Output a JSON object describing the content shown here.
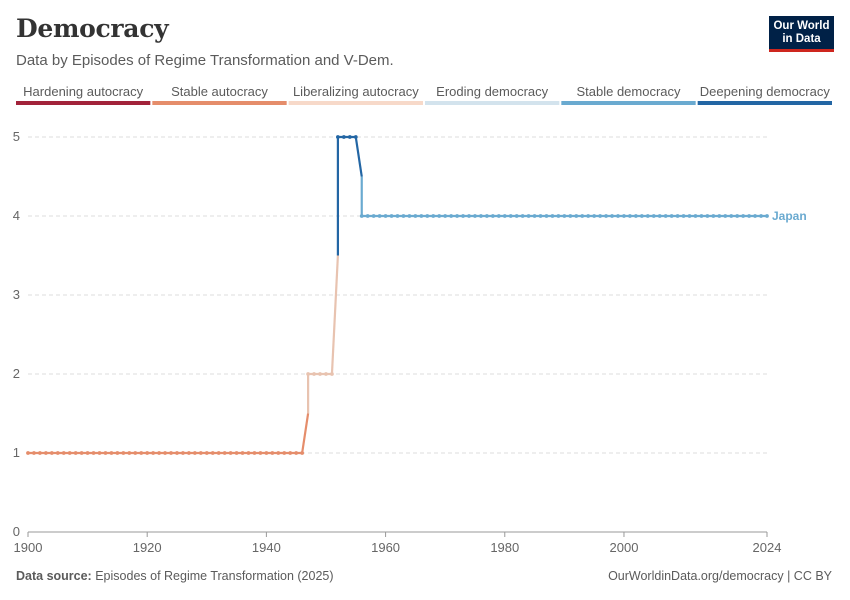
{
  "header": {
    "title": "Democracy",
    "subtitle": "Data by Episodes of Regime Transformation and V-Dem."
  },
  "logo": {
    "line1": "Our World",
    "line2": "in Data"
  },
  "legend": [
    {
      "label": "Hardening autocracy",
      "color": "#a2233a"
    },
    {
      "label": "Stable autocracy",
      "color": "#e58d6b"
    },
    {
      "label": "Liberalizing autocracy",
      "color": "#f7d9c9"
    },
    {
      "label": "Eroding democracy",
      "color": "#d3e3ed"
    },
    {
      "label": "Stable democracy",
      "color": "#6aaad0"
    },
    {
      "label": "Deepening democracy",
      "color": "#2366a4"
    }
  ],
  "footer": {
    "source_label": "Data source:",
    "source_text": "Episodes of Regime Transformation (2025)",
    "credit": "OurWorldinData.org/democracy | CC BY"
  },
  "chart_data": {
    "type": "line",
    "series": [
      {
        "name": "Japan",
        "color": "#6aaad0",
        "segments": [
          {
            "category": "Stable autocracy",
            "color": "#e58d6b",
            "x": [
              1900,
              1946
            ],
            "y": [
              1,
              1
            ]
          },
          {
            "category": "Liberalizing autocracy",
            "color": "#e8c3b0",
            "x": [
              1947,
              1951
            ],
            "y": [
              2,
              2
            ]
          },
          {
            "category": "Deepening democracy",
            "color": "#2366a4",
            "x": [
              1952,
              1955
            ],
            "y": [
              5,
              5
            ]
          },
          {
            "category": "Stable democracy",
            "color": "#6aaad0",
            "x": [
              1956,
              2024
            ],
            "y": [
              4,
              4
            ]
          }
        ]
      }
    ],
    "x_ticks": [
      1900,
      1920,
      1940,
      1960,
      1980,
      2000,
      2024
    ],
    "y_ticks": [
      0,
      1,
      2,
      3,
      4,
      5
    ],
    "xlim": [
      1900,
      2024
    ],
    "ylim": [
      0,
      5
    ],
    "grid": "horizontal dashed"
  }
}
